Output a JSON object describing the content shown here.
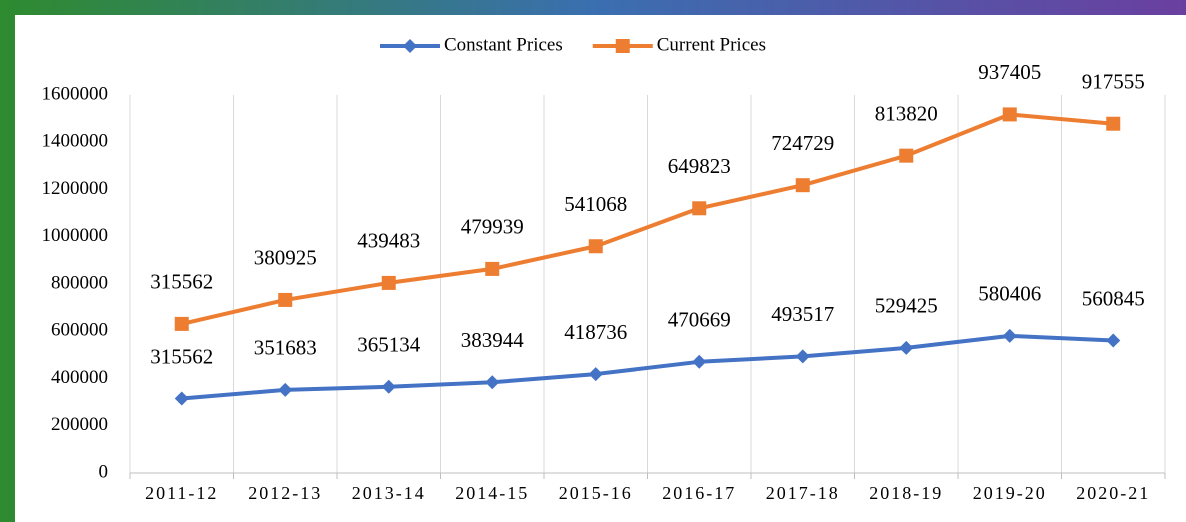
{
  "chart_data": {
    "type": "line",
    "stacked": true,
    "categories": [
      "2011-12",
      "2012-13",
      "2013-14",
      "2014-15",
      "2015-16",
      "2016-17",
      "2017-18",
      "2018-19",
      "2019-20",
      "2020-21"
    ],
    "series": [
      {
        "name": "Constant Prices",
        "color": "#4472c4",
        "marker": "diamond",
        "values": [
          315562,
          351683,
          365134,
          383944,
          418736,
          470669,
          493517,
          529425,
          580406,
          560845
        ]
      },
      {
        "name": "Current Prices",
        "color": "#ed7d31",
        "marker": "square",
        "values": [
          315562,
          380925,
          439483,
          479939,
          541068,
          649823,
          724729,
          813820,
          937405,
          917555
        ]
      }
    ],
    "ylim": [
      0,
      1600000
    ],
    "yticks": [
      0,
      200000,
      400000,
      600000,
      800000,
      1000000,
      1200000,
      1400000,
      1600000
    ],
    "grid": true,
    "legend": "top"
  }
}
